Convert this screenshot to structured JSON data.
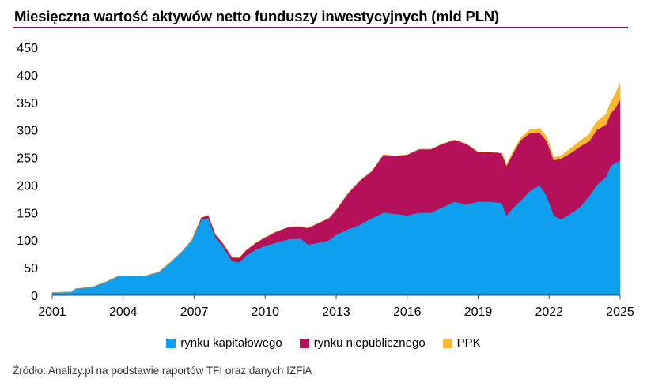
{
  "title": "Miesięczna wartość aktywów netto funduszy inwestycyjnych (mld PLN)",
  "source": "Źródło: Analizy.pl na podstawie raportów TFI oraz danych IZFiA",
  "colors": {
    "rule": "#7a1a5c",
    "kapitalowy": "#0ea0ef",
    "niepubliczny": "#b5105a",
    "ppk": "#f8b830"
  },
  "chart_data": {
    "type": "area",
    "stacked": true,
    "xlim": [
      2001,
      2025
    ],
    "ylim": [
      0,
      450
    ],
    "y_ticks": [
      0,
      50,
      100,
      150,
      200,
      250,
      300,
      350,
      400,
      450
    ],
    "y_tick_labels": [
      "0",
      "50",
      "100",
      "150",
      "200",
      "250",
      "300",
      "350",
      "400",
      "450"
    ],
    "x_ticks": [
      2001,
      2004,
      2007,
      2010,
      2013,
      2016,
      2019,
      2022,
      2025
    ],
    "x_tick_labels": [
      "2001",
      "2004",
      "2007",
      "2010",
      "2013",
      "2016",
      "2019",
      "2022",
      "2025"
    ],
    "grid": false,
    "legend_position": "bottom",
    "x": [
      2001.0,
      2001.8,
      2002.0,
      2002.7,
      2003.3,
      2003.8,
      2004.3,
      2004.9,
      2005.5,
      2006.0,
      2006.5,
      2006.9,
      2007.3,
      2007.6,
      2007.9,
      2008.2,
      2008.6,
      2008.9,
      2009.2,
      2009.6,
      2010.0,
      2010.5,
      2011.0,
      2011.5,
      2011.8,
      2012.2,
      2012.7,
      2013.0,
      2013.5,
      2014.0,
      2014.5,
      2015.0,
      2015.5,
      2016.0,
      2016.5,
      2017.0,
      2017.5,
      2018.0,
      2018.5,
      2019.0,
      2019.5,
      2020.0,
      2020.2,
      2020.5,
      2020.8,
      2021.2,
      2021.6,
      2021.9,
      2022.2,
      2022.5,
      2022.9,
      2023.3,
      2023.7,
      2024.0,
      2024.4,
      2024.6,
      2024.8,
      2025.0
    ],
    "series": [
      {
        "name": "rynku kapitałowego",
        "values": [
          5,
          6,
          12,
          15,
          25,
          35,
          35,
          35,
          42,
          60,
          80,
          100,
          138,
          140,
          105,
          90,
          62,
          60,
          72,
          83,
          90,
          96,
          102,
          103,
          92,
          95,
          100,
          110,
          120,
          128,
          140,
          150,
          148,
          145,
          150,
          150,
          160,
          170,
          165,
          170,
          170,
          168,
          145,
          160,
          172,
          190,
          200,
          180,
          145,
          138,
          148,
          160,
          180,
          200,
          215,
          235,
          240,
          245
        ]
      },
      {
        "name": "rynku niepublicznego",
        "values": [
          0,
          0,
          0,
          0,
          0,
          0,
          0,
          0,
          0,
          0,
          0,
          0,
          3,
          5,
          5,
          5,
          7,
          8,
          10,
          12,
          15,
          20,
          22,
          22,
          30,
          35,
          40,
          45,
          65,
          80,
          85,
          105,
          105,
          110,
          115,
          115,
          115,
          112,
          110,
          90,
          90,
          90,
          90,
          100,
          110,
          105,
          95,
          100,
          100,
          110,
          110,
          110,
          100,
          100,
          95,
          95,
          100,
          110
        ]
      },
      {
        "name": "PPK",
        "values": [
          0,
          0,
          0,
          0,
          0,
          0,
          0,
          0,
          0,
          0,
          0,
          0,
          0,
          0,
          0,
          0,
          0,
          0,
          0,
          0,
          0,
          0,
          0,
          0,
          0,
          0,
          0,
          0,
          0,
          0,
          0,
          0,
          0,
          0,
          0,
          0,
          0,
          0,
          0,
          0,
          0,
          0,
          2,
          3,
          4,
          6,
          8,
          7,
          5,
          5,
          8,
          10,
          12,
          15,
          18,
          20,
          25,
          30
        ]
      }
    ]
  },
  "legend": [
    {
      "label": "rynku kapitałowego",
      "color": "#0ea0ef"
    },
    {
      "label": "rynku niepublicznego",
      "color": "#b5105a"
    },
    {
      "label": "PPK",
      "color": "#f8b830"
    }
  ]
}
